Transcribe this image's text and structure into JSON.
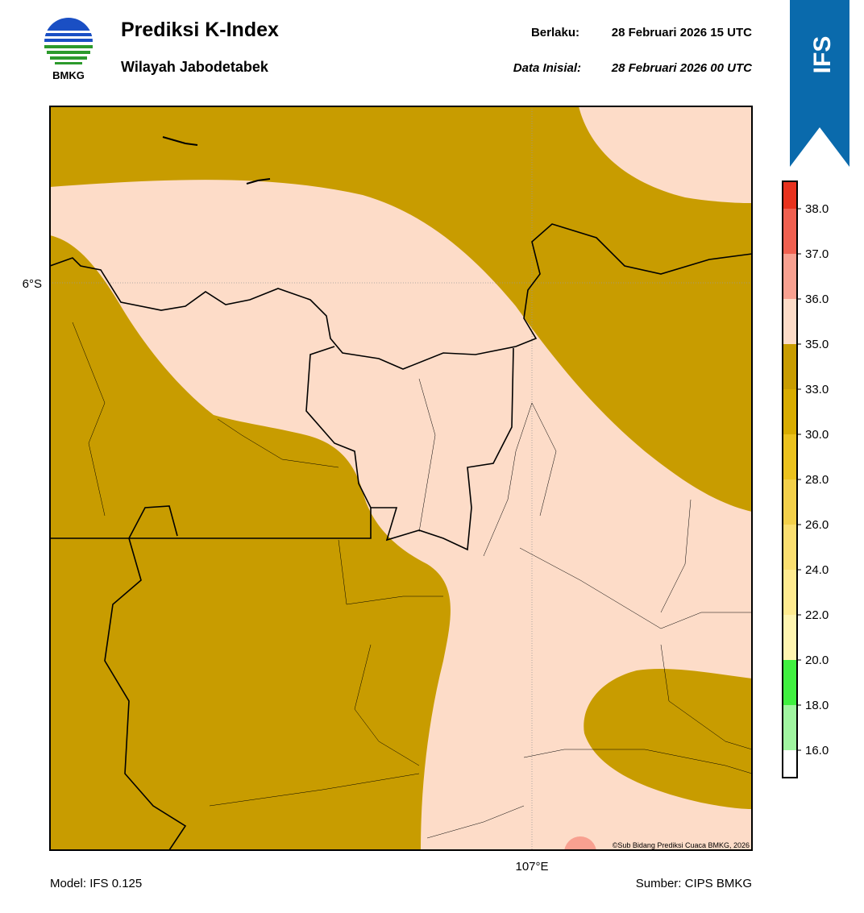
{
  "header": {
    "logo_text": "BMKG",
    "title": "Prediksi K-Index",
    "subtitle": "Wilayah Jabodetabek",
    "valid_label": "Berlaku:",
    "valid_time": "28 Februari 2026 15 UTC",
    "init_label": "Data Inisial:",
    "init_time": "28 Februari 2026 00 UTC",
    "badge": "IFS"
  },
  "map": {
    "lat_label": "6°S",
    "lon_label": "107°E",
    "copyright": "©Sub Bidang Prediksi Cuaca BMKG, 2026"
  },
  "colorbar": {
    "ticks": [
      {
        "value": 16,
        "label": "16.0"
      },
      {
        "value": 18,
        "label": "18.0"
      },
      {
        "value": 20,
        "label": "20.0"
      },
      {
        "value": 22,
        "label": "22.0"
      },
      {
        "value": 24,
        "label": "24.0"
      },
      {
        "value": 26,
        "label": "26.0"
      },
      {
        "value": 28,
        "label": "28.0"
      },
      {
        "value": 30,
        "label": "30.0"
      },
      {
        "value": 33,
        "label": "33.0"
      },
      {
        "value": 35,
        "label": "35.0"
      },
      {
        "value": 36,
        "label": "36.0"
      },
      {
        "value": 37,
        "label": "37.0"
      },
      {
        "value": 38,
        "label": "38.0"
      }
    ],
    "colors": [
      "#ffffff",
      "#a0f5a0",
      "#40f040",
      "#fff5b0",
      "#ffeb90",
      "#fbdf70",
      "#f3d04a",
      "#ebc21e",
      "#d8ac00",
      "#c89c00",
      "#fddcc8",
      "#f8a090",
      "#f06050",
      "#e8321e"
    ]
  },
  "footer": {
    "model": "Model: IFS 0.125",
    "source": "Sumber: CIPS BMKG"
  }
}
